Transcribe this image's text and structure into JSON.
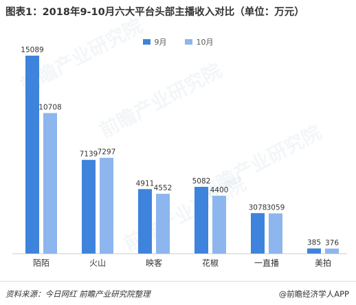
{
  "header": {
    "title": "图表1：2018年9-10月六大平台头部主播收入对比（单位：万元）"
  },
  "footer": {
    "source": "资料来源：今日网红 前瞻产业研究院整理",
    "brand": "@前瞻经济学人APP"
  },
  "watermark": {
    "text": "前瞻产业研究院"
  },
  "colors": {
    "september": "#3E83DC",
    "october": "#8DB5EE"
  },
  "chart_data": {
    "type": "bar",
    "title": "图表1：2018年9-10月六大平台头部主播收入对比（单位：万元）",
    "categories": [
      "陌陌",
      "火山",
      "映客",
      "花椒",
      "一直播",
      "美拍"
    ],
    "series": [
      {
        "name": "9月",
        "values": [
          15089,
          7139,
          4911,
          5082,
          3078,
          385
        ],
        "color": "#3E83DC"
      },
      {
        "name": "10月",
        "values": [
          10708,
          7297,
          4552,
          4400,
          3059,
          376
        ],
        "color": "#8DB5EE"
      }
    ],
    "ylim": [
      0,
      15089
    ],
    "grid": false,
    "legend_position": "top-center"
  }
}
